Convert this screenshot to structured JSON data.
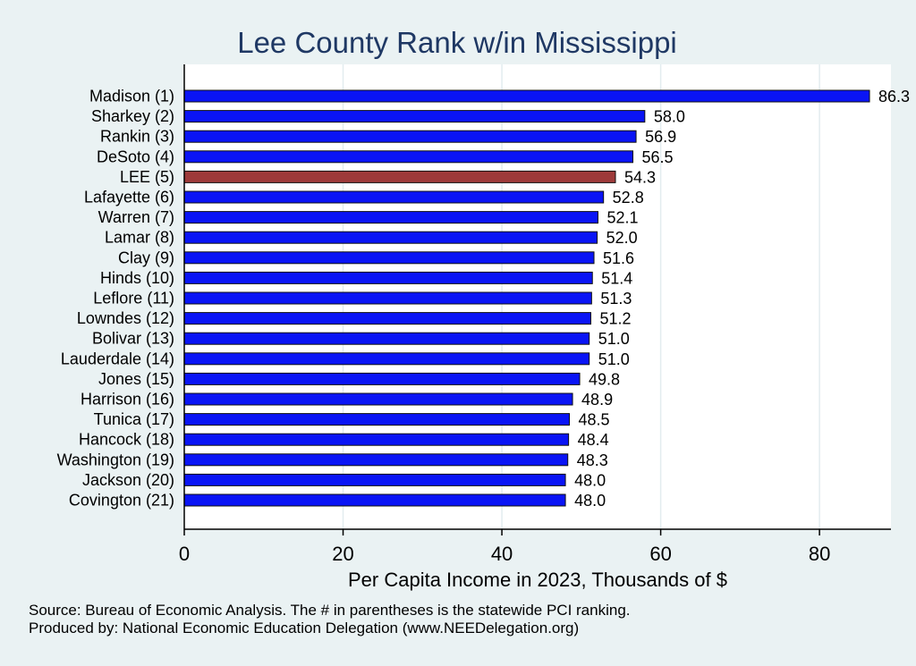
{
  "chart_data": {
    "type": "bar",
    "orientation": "horizontal",
    "title": "Lee County Rank w/in Mississippi",
    "xlabel": "Per Capita Income in 2023, Thousands of $",
    "ylabel": "",
    "xlim": [
      0,
      89
    ],
    "xticks": [
      0,
      20,
      40,
      60,
      80
    ],
    "grid": true,
    "categories": [
      "Madison  (1)",
      "Sharkey  (2)",
      "Rankin  (3)",
      "DeSoto  (4)",
      "LEE  (5)",
      "Lafayette  (6)",
      "Warren  (7)",
      "Lamar  (8)",
      "Clay  (9)",
      "Hinds (10)",
      "Leflore (11)",
      "Lowndes (12)",
      "Bolivar (13)",
      "Lauderdale (14)",
      "Jones (15)",
      "Harrison (16)",
      "Tunica (17)",
      "Hancock (18)",
      "Washington (19)",
      "Jackson (20)",
      "Covington (21)"
    ],
    "values": [
      86.3,
      58.0,
      56.9,
      56.5,
      54.3,
      52.8,
      52.1,
      52.0,
      51.6,
      51.4,
      51.3,
      51.2,
      51.0,
      51.0,
      49.8,
      48.9,
      48.5,
      48.4,
      48.3,
      48.0,
      48.0
    ],
    "value_labels": [
      "86.3",
      "58.0",
      "56.9",
      "56.5",
      "54.3",
      "52.8",
      "52.1",
      "52.0",
      "51.6",
      "51.4",
      "51.3",
      "51.2",
      "51.0",
      "51.0",
      "49.8",
      "48.9",
      "48.5",
      "48.4",
      "48.3",
      "48.0",
      "48.0"
    ],
    "highlight_index": 4,
    "colors": {
      "bar": "#0a14f5",
      "highlight": "#9e3a3a",
      "plot_bg": "#ffffff",
      "page_bg": "#eaf2f3",
      "grid": "#e3ecef",
      "title": "#1f3864"
    }
  },
  "notes": [
    "Source: Bureau of Economic Analysis. The # in parentheses is the statewide PCI ranking.",
    "Produced by: National Economic Education Delegation (www.NEEDelegation.org)"
  ]
}
